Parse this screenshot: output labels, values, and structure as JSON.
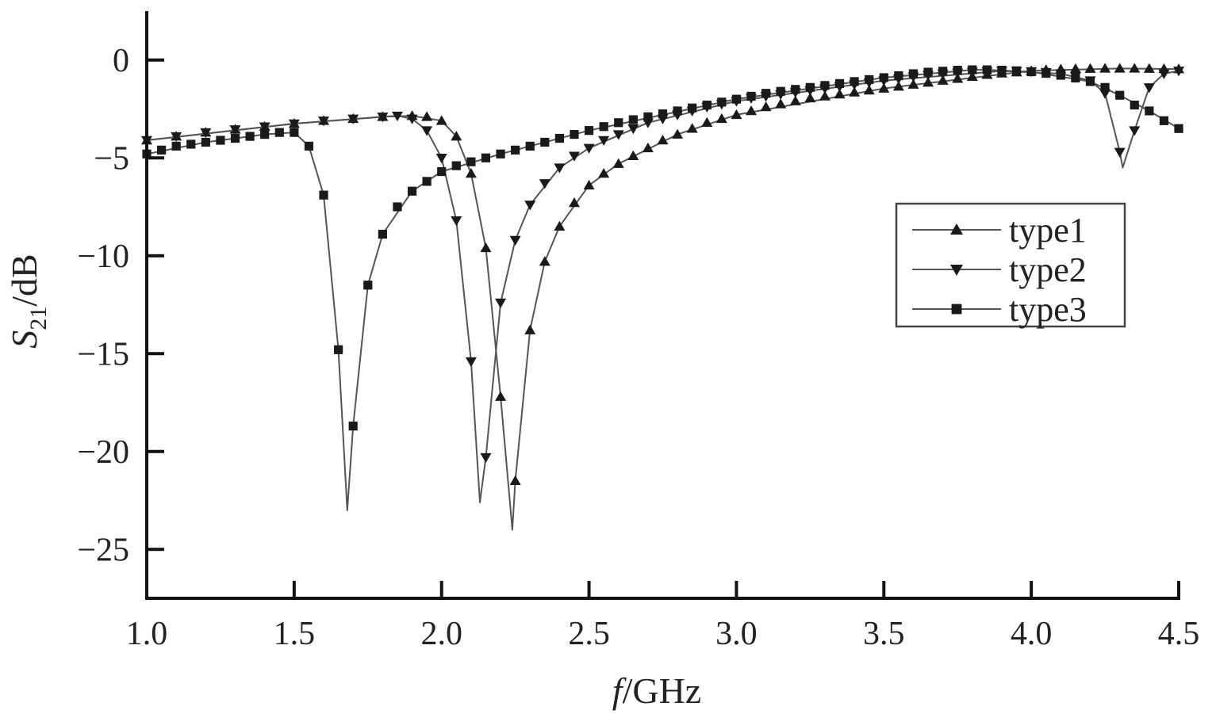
{
  "chart_data": {
    "type": "line",
    "title": "",
    "xlabel": {
      "italic": "f",
      "rest": "/GHz"
    },
    "ylabel": {
      "italic": "S",
      "sub": "21",
      "rest": "/dB"
    },
    "xlim": [
      1.0,
      4.5
    ],
    "ylim": [
      -27.5,
      2.5
    ],
    "xticks": [
      1.0,
      1.5,
      2.0,
      2.5,
      3.0,
      3.5,
      4.0,
      4.5
    ],
    "xtick_labels": [
      "1.0",
      "1.5",
      "2.0",
      "2.5",
      "3.0",
      "3.5",
      "4.0",
      "4.5"
    ],
    "yticks": [
      0,
      -5,
      -10,
      -15,
      -20,
      -25
    ],
    "ytick_labels": [
      "0",
      "−5",
      "−10",
      "−15",
      "−20",
      "−25"
    ],
    "grid": false,
    "legend_position": "right",
    "colors": {
      "line": "#555555",
      "marker": "#1a1a1a",
      "axis": "#111111"
    },
    "series": [
      {
        "name": "type1",
        "marker": "triangle-up",
        "points": [
          [
            1.0,
            -4.1
          ],
          [
            1.1,
            -3.9
          ],
          [
            1.2,
            -3.7
          ],
          [
            1.3,
            -3.55
          ],
          [
            1.4,
            -3.4
          ],
          [
            1.5,
            -3.25
          ],
          [
            1.6,
            -3.1
          ],
          [
            1.7,
            -3.0
          ],
          [
            1.8,
            -2.9
          ],
          [
            1.9,
            -2.85
          ],
          [
            1.95,
            -2.9
          ],
          [
            2.0,
            -3.1
          ],
          [
            2.05,
            -3.9
          ],
          [
            2.1,
            -5.8
          ],
          [
            2.15,
            -9.6
          ],
          [
            2.2,
            -17.2
          ],
          [
            2.25,
            -21.5
          ],
          [
            2.3,
            -13.8
          ],
          [
            2.35,
            -10.3
          ],
          [
            2.4,
            -8.5
          ],
          [
            2.45,
            -7.3
          ],
          [
            2.5,
            -6.4
          ],
          [
            2.55,
            -5.8
          ],
          [
            2.6,
            -5.3
          ],
          [
            2.65,
            -4.9
          ],
          [
            2.7,
            -4.5
          ],
          [
            2.75,
            -4.1
          ],
          [
            2.8,
            -3.8
          ],
          [
            2.85,
            -3.5
          ],
          [
            2.9,
            -3.2
          ],
          [
            2.95,
            -3.0
          ],
          [
            3.0,
            -2.8
          ],
          [
            3.05,
            -2.6
          ],
          [
            3.1,
            -2.4
          ],
          [
            3.15,
            -2.25
          ],
          [
            3.2,
            -2.1
          ],
          [
            3.25,
            -1.95
          ],
          [
            3.3,
            -1.85
          ],
          [
            3.35,
            -1.75
          ],
          [
            3.4,
            -1.65
          ],
          [
            3.45,
            -1.55
          ],
          [
            3.5,
            -1.45
          ],
          [
            3.55,
            -1.35
          ],
          [
            3.6,
            -1.25
          ],
          [
            3.65,
            -1.15
          ],
          [
            3.7,
            -1.05
          ],
          [
            3.75,
            -0.95
          ],
          [
            3.8,
            -0.85
          ],
          [
            3.85,
            -0.75
          ],
          [
            3.9,
            -0.68
          ],
          [
            3.95,
            -0.62
          ],
          [
            4.0,
            -0.55
          ],
          [
            4.05,
            -0.5
          ],
          [
            4.1,
            -0.47
          ],
          [
            4.15,
            -0.45
          ],
          [
            4.2,
            -0.44
          ],
          [
            4.25,
            -0.43
          ],
          [
            4.3,
            -0.43
          ],
          [
            4.35,
            -0.43
          ],
          [
            4.4,
            -0.44
          ],
          [
            4.45,
            -0.45
          ],
          [
            4.5,
            -0.46
          ]
        ],
        "curve": [
          [
            1.0,
            -4.1
          ],
          [
            1.5,
            -3.25
          ],
          [
            1.8,
            -2.9
          ],
          [
            1.9,
            -2.85
          ],
          [
            2.0,
            -3.1
          ],
          [
            2.05,
            -3.9
          ],
          [
            2.1,
            -5.8
          ],
          [
            2.15,
            -9.6
          ],
          [
            2.2,
            -17.2
          ],
          [
            2.24,
            -24.0
          ],
          [
            2.25,
            -21.5
          ],
          [
            2.3,
            -13.8
          ],
          [
            2.35,
            -10.3
          ],
          [
            2.4,
            -8.5
          ],
          [
            2.5,
            -6.4
          ],
          [
            2.6,
            -5.3
          ],
          [
            2.8,
            -3.8
          ],
          [
            3.0,
            -2.8
          ],
          [
            3.5,
            -1.45
          ],
          [
            4.0,
            -0.55
          ],
          [
            4.3,
            -0.43
          ],
          [
            4.5,
            -0.46
          ]
        ]
      },
      {
        "name": "type2",
        "marker": "triangle-down",
        "points": [
          [
            1.0,
            -4.1
          ],
          [
            1.1,
            -3.9
          ],
          [
            1.2,
            -3.7
          ],
          [
            1.3,
            -3.55
          ],
          [
            1.4,
            -3.4
          ],
          [
            1.5,
            -3.25
          ],
          [
            1.6,
            -3.1
          ],
          [
            1.7,
            -3.0
          ],
          [
            1.8,
            -2.9
          ],
          [
            1.85,
            -2.85
          ],
          [
            1.9,
            -3.0
          ],
          [
            1.95,
            -3.6
          ],
          [
            2.0,
            -5.0
          ],
          [
            2.05,
            -8.2
          ],
          [
            2.1,
            -15.4
          ],
          [
            2.15,
            -20.3
          ],
          [
            2.2,
            -12.4
          ],
          [
            2.25,
            -9.2
          ],
          [
            2.3,
            -7.4
          ],
          [
            2.35,
            -6.3
          ],
          [
            2.4,
            -5.5
          ],
          [
            2.45,
            -4.9
          ],
          [
            2.5,
            -4.5
          ],
          [
            2.55,
            -4.1
          ],
          [
            2.6,
            -3.8
          ],
          [
            2.65,
            -3.5
          ],
          [
            2.7,
            -3.2
          ],
          [
            2.75,
            -3.0
          ],
          [
            2.8,
            -2.8
          ],
          [
            2.85,
            -2.6
          ],
          [
            2.9,
            -2.4
          ],
          [
            2.95,
            -2.25
          ],
          [
            3.0,
            -2.1
          ],
          [
            3.05,
            -1.95
          ],
          [
            3.1,
            -1.85
          ],
          [
            3.15,
            -1.75
          ],
          [
            3.2,
            -1.65
          ],
          [
            3.25,
            -1.55
          ],
          [
            3.3,
            -1.45
          ],
          [
            3.35,
            -1.35
          ],
          [
            3.4,
            -1.25
          ],
          [
            3.45,
            -1.15
          ],
          [
            3.5,
            -1.05
          ],
          [
            3.55,
            -0.95
          ],
          [
            3.6,
            -0.85
          ],
          [
            3.65,
            -0.77
          ],
          [
            3.7,
            -0.7
          ],
          [
            3.75,
            -0.65
          ],
          [
            3.8,
            -0.6
          ],
          [
            3.85,
            -0.58
          ],
          [
            3.9,
            -0.56
          ],
          [
            3.95,
            -0.56
          ],
          [
            4.0,
            -0.58
          ],
          [
            4.05,
            -0.62
          ],
          [
            4.1,
            -0.7
          ],
          [
            4.15,
            -0.82
          ],
          [
            4.2,
            -1.05
          ],
          [
            4.25,
            -1.7
          ],
          [
            4.3,
            -4.7
          ],
          [
            4.35,
            -3.6
          ],
          [
            4.4,
            -1.4
          ],
          [
            4.45,
            -0.7
          ],
          [
            4.5,
            -0.55
          ]
        ],
        "curve": [
          [
            1.0,
            -4.1
          ],
          [
            1.5,
            -3.25
          ],
          [
            1.8,
            -2.9
          ],
          [
            1.85,
            -2.85
          ],
          [
            1.9,
            -3.0
          ],
          [
            1.95,
            -3.6
          ],
          [
            2.0,
            -5.0
          ],
          [
            2.05,
            -8.2
          ],
          [
            2.1,
            -15.4
          ],
          [
            2.13,
            -22.6
          ],
          [
            2.15,
            -20.3
          ],
          [
            2.2,
            -12.4
          ],
          [
            2.25,
            -9.2
          ],
          [
            2.3,
            -7.4
          ],
          [
            2.4,
            -5.5
          ],
          [
            2.5,
            -4.5
          ],
          [
            2.7,
            -3.2
          ],
          [
            3.0,
            -2.1
          ],
          [
            3.5,
            -1.05
          ],
          [
            3.9,
            -0.56
          ],
          [
            4.1,
            -0.7
          ],
          [
            4.2,
            -1.05
          ],
          [
            4.25,
            -1.7
          ],
          [
            4.3,
            -4.7
          ],
          [
            4.31,
            -5.5
          ],
          [
            4.35,
            -3.6
          ],
          [
            4.4,
            -1.4
          ],
          [
            4.45,
            -0.7
          ],
          [
            4.5,
            -0.55
          ]
        ]
      },
      {
        "name": "type3",
        "marker": "square",
        "points": [
          [
            1.0,
            -4.8
          ],
          [
            1.05,
            -4.6
          ],
          [
            1.1,
            -4.4
          ],
          [
            1.15,
            -4.3
          ],
          [
            1.2,
            -4.2
          ],
          [
            1.25,
            -4.1
          ],
          [
            1.3,
            -4.0
          ],
          [
            1.35,
            -3.9
          ],
          [
            1.4,
            -3.8
          ],
          [
            1.45,
            -3.7
          ],
          [
            1.5,
            -3.7
          ],
          [
            1.55,
            -4.4
          ],
          [
            1.6,
            -6.9
          ],
          [
            1.65,
            -14.8
          ],
          [
            1.7,
            -18.7
          ],
          [
            1.75,
            -11.5
          ],
          [
            1.8,
            -8.9
          ],
          [
            1.85,
            -7.5
          ],
          [
            1.9,
            -6.7
          ],
          [
            1.95,
            -6.2
          ],
          [
            2.0,
            -5.7
          ],
          [
            2.05,
            -5.4
          ],
          [
            2.1,
            -5.2
          ],
          [
            2.15,
            -5.0
          ],
          [
            2.2,
            -4.8
          ],
          [
            2.25,
            -4.6
          ],
          [
            2.3,
            -4.4
          ],
          [
            2.35,
            -4.2
          ],
          [
            2.4,
            -4.0
          ],
          [
            2.45,
            -3.8
          ],
          [
            2.5,
            -3.6
          ],
          [
            2.55,
            -3.4
          ],
          [
            2.6,
            -3.2
          ],
          [
            2.65,
            -3.05
          ],
          [
            2.7,
            -2.9
          ],
          [
            2.75,
            -2.75
          ],
          [
            2.8,
            -2.6
          ],
          [
            2.85,
            -2.45
          ],
          [
            2.9,
            -2.3
          ],
          [
            2.95,
            -2.15
          ],
          [
            3.0,
            -2.0
          ],
          [
            3.05,
            -1.85
          ],
          [
            3.1,
            -1.7
          ],
          [
            3.15,
            -1.6
          ],
          [
            3.2,
            -1.5
          ],
          [
            3.25,
            -1.4
          ],
          [
            3.3,
            -1.3
          ],
          [
            3.35,
            -1.2
          ],
          [
            3.4,
            -1.1
          ],
          [
            3.45,
            -1.0
          ],
          [
            3.5,
            -0.9
          ],
          [
            3.55,
            -0.8
          ],
          [
            3.6,
            -0.7
          ],
          [
            3.65,
            -0.62
          ],
          [
            3.7,
            -0.57
          ],
          [
            3.75,
            -0.52
          ],
          [
            3.8,
            -0.5
          ],
          [
            3.85,
            -0.5
          ],
          [
            3.9,
            -0.52
          ],
          [
            3.95,
            -0.55
          ],
          [
            4.0,
            -0.6
          ],
          [
            4.05,
            -0.68
          ],
          [
            4.1,
            -0.78
          ],
          [
            4.15,
            -0.92
          ],
          [
            4.2,
            -1.1
          ],
          [
            4.25,
            -1.4
          ],
          [
            4.3,
            -1.8
          ],
          [
            4.35,
            -2.3
          ],
          [
            4.4,
            -2.6
          ],
          [
            4.45,
            -3.1
          ],
          [
            4.5,
            -3.5
          ]
        ],
        "curve": [
          [
            1.0,
            -4.8
          ],
          [
            1.2,
            -4.2
          ],
          [
            1.4,
            -3.8
          ],
          [
            1.5,
            -3.7
          ],
          [
            1.55,
            -4.4
          ],
          [
            1.6,
            -6.9
          ],
          [
            1.65,
            -14.8
          ],
          [
            1.68,
            -23.0
          ],
          [
            1.7,
            -18.7
          ],
          [
            1.75,
            -11.5
          ],
          [
            1.8,
            -8.9
          ],
          [
            1.9,
            -6.7
          ],
          [
            2.0,
            -5.7
          ],
          [
            2.2,
            -4.8
          ],
          [
            2.5,
            -3.6
          ],
          [
            3.0,
            -2.0
          ],
          [
            3.5,
            -0.9
          ],
          [
            3.8,
            -0.5
          ],
          [
            3.85,
            -0.5
          ],
          [
            4.0,
            -0.6
          ],
          [
            4.2,
            -1.1
          ],
          [
            4.3,
            -1.8
          ],
          [
            4.4,
            -2.6
          ],
          [
            4.5,
            -3.5
          ]
        ]
      }
    ]
  }
}
